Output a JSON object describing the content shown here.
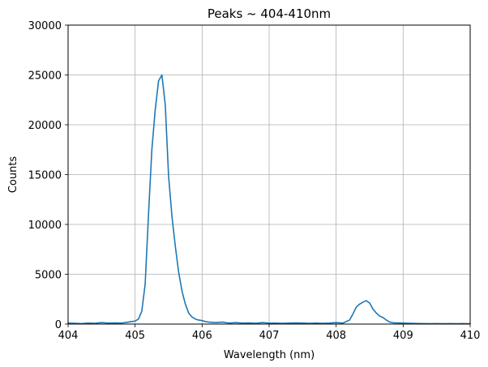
{
  "chart_data": {
    "type": "line",
    "title": "Peaks ~ 404-410nm",
    "xlabel": "Wavelength (nm)",
    "ylabel": "Counts",
    "xlim": [
      404,
      410
    ],
    "ylim": [
      0,
      30000
    ],
    "xticks": [
      404,
      405,
      406,
      407,
      408,
      409,
      410
    ],
    "yticks": [
      0,
      5000,
      10000,
      15000,
      20000,
      25000,
      30000
    ],
    "grid": true,
    "series_color": "#1f77b4",
    "series": [
      {
        "x": [
          404.0,
          404.1,
          404.2,
          404.3,
          404.4,
          404.5,
          404.6,
          404.7,
          404.8,
          404.9,
          405.0,
          405.05,
          405.1,
          405.15,
          405.2,
          405.25,
          405.3,
          405.35,
          405.4,
          405.45,
          405.5,
          405.55,
          405.6,
          405.65,
          405.7,
          405.75,
          405.8,
          405.85,
          405.9,
          405.95,
          406.0,
          406.05,
          406.1,
          406.2,
          406.3,
          406.4,
          406.5,
          406.6,
          406.7,
          406.8,
          406.9,
          407.0,
          407.1,
          407.2,
          407.3,
          407.4,
          407.5,
          407.6,
          407.7,
          407.8,
          407.9,
          408.0,
          408.1,
          408.2,
          408.25,
          408.3,
          408.35,
          408.4,
          408.45,
          408.5,
          408.55,
          408.6,
          408.65,
          408.7,
          408.75,
          408.8,
          408.85,
          408.9,
          408.95,
          409.0,
          409.1,
          409.2,
          409.3,
          409.4,
          409.5,
          409.6,
          409.7,
          409.8,
          409.9,
          410.0
        ],
        "y": [
          100,
          80,
          50,
          100,
          80,
          150,
          100,
          120,
          100,
          200,
          300,
          500,
          1300,
          4000,
          11000,
          17500,
          21500,
          24400,
          25000,
          22000,
          14800,
          10800,
          7800,
          5200,
          3300,
          2000,
          1100,
          700,
          500,
          400,
          350,
          250,
          200,
          150,
          200,
          100,
          150,
          100,
          120,
          80,
          150,
          100,
          100,
          80,
          100,
          120,
          100,
          80,
          100,
          80,
          100,
          150,
          100,
          400,
          1000,
          1700,
          2000,
          2200,
          2350,
          2100,
          1500,
          1100,
          800,
          650,
          400,
          200,
          130,
          120,
          110,
          100,
          80,
          60,
          50,
          40,
          50,
          40,
          50,
          40,
          50,
          40
        ]
      }
    ]
  }
}
